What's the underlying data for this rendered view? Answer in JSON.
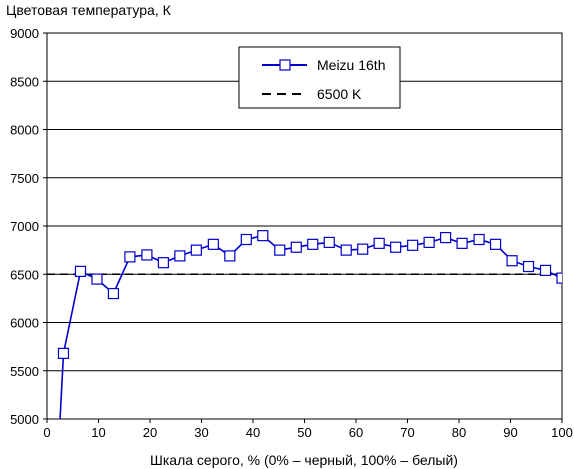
{
  "chart_data": {
    "type": "line",
    "title": "",
    "ylabel": "Цветовая температура, К",
    "xlabel": "Шкала серого, % (0% – черный, 100% – белый)",
    "xlim": [
      0,
      100
    ],
    "ylim": [
      5000,
      9000
    ],
    "xticks": [
      0,
      10,
      20,
      30,
      40,
      50,
      60,
      70,
      80,
      90,
      100
    ],
    "yticks": [
      5000,
      5500,
      6000,
      6500,
      7000,
      7500,
      8000,
      8500,
      9000
    ],
    "grid": "horizontal",
    "legend_position": "top-right",
    "series": [
      {
        "name": "Meizu 16th",
        "color": "#0000cc",
        "marker": "square",
        "points": [
          [
            2.5,
            4970
          ],
          [
            3.2,
            5680
          ],
          [
            6.5,
            6530
          ],
          [
            9.7,
            6450
          ],
          [
            12.9,
            6300
          ],
          [
            16.1,
            6680
          ],
          [
            19.4,
            6700
          ],
          [
            22.6,
            6620
          ],
          [
            25.8,
            6690
          ],
          [
            29.0,
            6750
          ],
          [
            32.3,
            6810
          ],
          [
            35.5,
            6690
          ],
          [
            38.7,
            6860
          ],
          [
            41.9,
            6900
          ],
          [
            45.2,
            6750
          ],
          [
            48.4,
            6780
          ],
          [
            51.6,
            6810
          ],
          [
            54.8,
            6830
          ],
          [
            58.1,
            6750
          ],
          [
            61.3,
            6760
          ],
          [
            64.5,
            6820
          ],
          [
            67.7,
            6780
          ],
          [
            71.0,
            6800
          ],
          [
            74.2,
            6830
          ],
          [
            77.4,
            6880
          ],
          [
            80.6,
            6820
          ],
          [
            83.9,
            6860
          ],
          [
            87.1,
            6810
          ],
          [
            90.3,
            6640
          ],
          [
            93.5,
            6580
          ],
          [
            96.8,
            6540
          ],
          [
            100.0,
            6460
          ]
        ]
      },
      {
        "name": "6500 K",
        "color": "#000000",
        "style": "dashed",
        "points": [
          [
            0,
            6500
          ],
          [
            100,
            6500
          ]
        ]
      }
    ]
  }
}
